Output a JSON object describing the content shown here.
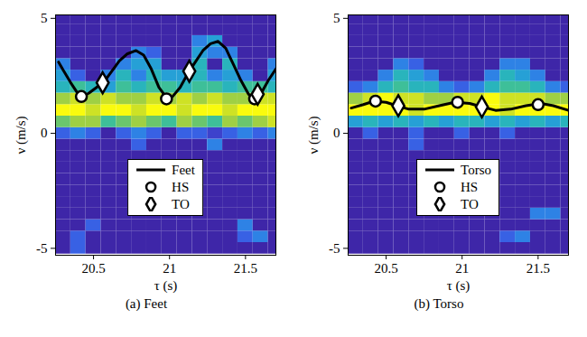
{
  "chart_data": [
    {
      "type": "line",
      "title": "(a) Feet",
      "x_label": "τ (s)",
      "y_label": "ν (m/s)",
      "xlim": [
        20.25,
        21.7
      ],
      "ylim": [
        -5.3,
        5.15
      ],
      "xticks": [
        20.5,
        21,
        21.5
      ],
      "yticks": [
        -5,
        0,
        5
      ],
      "legend": "bottom",
      "series": [
        {
          "name": "Feet",
          "type": "line",
          "color": "#000000",
          "x": [
            20.27,
            20.3,
            20.35,
            20.4,
            20.43,
            20.47,
            20.52,
            20.57,
            20.62,
            20.67,
            20.72,
            20.78,
            20.83,
            20.88,
            20.93,
            20.98,
            21.02,
            21.07,
            21.12,
            21.17,
            21.22,
            21.27,
            21.32,
            21.37,
            21.42,
            21.47,
            21.52,
            21.56,
            21.6,
            21.65,
            21.7
          ],
          "values": [
            3.1,
            2.75,
            2.2,
            1.7,
            1.6,
            1.75,
            2.0,
            2.25,
            2.7,
            3.15,
            3.45,
            3.6,
            3.4,
            2.8,
            2.0,
            1.55,
            1.6,
            2.0,
            2.6,
            3.1,
            3.6,
            3.9,
            4.0,
            3.7,
            3.0,
            2.3,
            1.7,
            1.5,
            1.7,
            2.3,
            2.8
          ]
        },
        {
          "name": "HS",
          "type": "scatter",
          "marker": "circle",
          "color": "#000000",
          "x": [
            20.42,
            20.98,
            21.56
          ],
          "values": [
            1.6,
            1.5,
            1.5
          ]
        },
        {
          "name": "TO",
          "type": "scatter",
          "marker": "diamond",
          "color": "#000000",
          "x": [
            20.56,
            21.13,
            21.58
          ],
          "values": [
            2.2,
            2.7,
            1.7
          ]
        }
      ],
      "heatmap": {
        "tau_edges": [
          20.25,
          20.35,
          20.45,
          20.55,
          20.65,
          20.75,
          20.85,
          20.95,
          21.05,
          21.15,
          21.25,
          21.35,
          21.45,
          21.55,
          21.65,
          21.75
        ],
        "nu_edges": [
          -5.25,
          -4.75,
          -4.25,
          -3.75,
          -3.25,
          -2.75,
          -2.25,
          -1.75,
          -1.25,
          -0.75,
          -0.25,
          0.25,
          0.75,
          1.25,
          1.75,
          2.25,
          2.75,
          3.25,
          3.75,
          4.25,
          4.75,
          5.25
        ],
        "clim": [
          0,
          1
        ],
        "values": [
          [
            0,
            0.2,
            0,
            0,
            0,
            0,
            0,
            0,
            0,
            0,
            0,
            0,
            0,
            0,
            0
          ],
          [
            0,
            0.2,
            0,
            0,
            0,
            0,
            0,
            0,
            0,
            0,
            0,
            0,
            0.2,
            0.3,
            0
          ],
          [
            0,
            0,
            0.2,
            0,
            0,
            0,
            0,
            0,
            0,
            0,
            0,
            0,
            0.3,
            0,
            0
          ],
          [
            0,
            0,
            0,
            0,
            0,
            0,
            0,
            0,
            0,
            0,
            0,
            0,
            0,
            0,
            0
          ],
          [
            0,
            0,
            0,
            0,
            0,
            0,
            0,
            0,
            0,
            0,
            0,
            0,
            0,
            0,
            0
          ],
          [
            0,
            0,
            0,
            0,
            0,
            0,
            0,
            0,
            0,
            0,
            0,
            0,
            0,
            0,
            0
          ],
          [
            0,
            0,
            0,
            0,
            0,
            0,
            0,
            0,
            0,
            0,
            0,
            0,
            0,
            0,
            0
          ],
          [
            0,
            0,
            0,
            0,
            0,
            0,
            0,
            0,
            0,
            0,
            0,
            0,
            0,
            0,
            0
          ],
          [
            0,
            0,
            0,
            0,
            0,
            0,
            0,
            0,
            0,
            0,
            0,
            0,
            0,
            0,
            0
          ],
          [
            0,
            0,
            0,
            0,
            0,
            0.2,
            0,
            0,
            0,
            0,
            0.3,
            0,
            0,
            0,
            0
          ],
          [
            0.2,
            0.3,
            0.2,
            0,
            0.2,
            0.3,
            0.2,
            0,
            0.2,
            0.2,
            0.1,
            0.2,
            0.3,
            0.2,
            0.3
          ],
          [
            0.7,
            0.8,
            0.8,
            0.6,
            0.7,
            0.8,
            0.7,
            0.6,
            0.8,
            0.7,
            0.6,
            0.8,
            0.7,
            0.8,
            0.9
          ],
          [
            1,
            1,
            0.9,
            1,
            1,
            0.9,
            1,
            1,
            0.9,
            1,
            1,
            0.9,
            1,
            1,
            1
          ],
          [
            0.8,
            0.9,
            0.8,
            0.9,
            0.8,
            0.8,
            0.9,
            0.8,
            0.9,
            0.8,
            0.9,
            0.8,
            0.8,
            0.9,
            0.9
          ],
          [
            0.5,
            0.6,
            0.5,
            0.4,
            0.6,
            0.5,
            0.6,
            0.6,
            0.5,
            0.6,
            0.6,
            0.5,
            0.6,
            0.6,
            0.5
          ],
          [
            0.4,
            0.2,
            0,
            0.3,
            0.5,
            0.3,
            0.5,
            0.4,
            0.4,
            0.5,
            0.3,
            0.4,
            0.3,
            0,
            0.4
          ],
          [
            0.3,
            0,
            0,
            0,
            0.3,
            0.4,
            0.4,
            0,
            0,
            0.5,
            0,
            0.5,
            0,
            0,
            0.3
          ],
          [
            0,
            0,
            0,
            0,
            0,
            0.3,
            0.2,
            0,
            0,
            0.4,
            0.3,
            0.3,
            0,
            0,
            0
          ],
          [
            0,
            0,
            0,
            0,
            0,
            0,
            0,
            0,
            0,
            0.3,
            0.4,
            0,
            0,
            0,
            0
          ],
          [
            0,
            0,
            0,
            0,
            0,
            0,
            0,
            0,
            0,
            0,
            0,
            0,
            0,
            0,
            0
          ],
          [
            0,
            0,
            0,
            0,
            0,
            0,
            0,
            0,
            0,
            0,
            0,
            0,
            0,
            0,
            0
          ]
        ]
      }
    },
    {
      "type": "line",
      "title": "(b) Torso",
      "x_label": "τ (s)",
      "y_label": "ν (m/s)",
      "xlim": [
        20.25,
        21.7
      ],
      "ylim": [
        -5.3,
        5.15
      ],
      "xticks": [
        20.5,
        21,
        21.5
      ],
      "yticks": [
        -5,
        0,
        5
      ],
      "legend": "bottom",
      "series": [
        {
          "name": "Torso",
          "type": "line",
          "color": "#000000",
          "x": [
            20.27,
            20.35,
            20.42,
            20.5,
            20.57,
            20.65,
            20.75,
            20.85,
            20.95,
            21.05,
            21.13,
            21.22,
            21.32,
            21.42,
            21.52,
            21.6,
            21.7
          ],
          "values": [
            1.1,
            1.25,
            1.4,
            1.35,
            1.2,
            1.05,
            1.05,
            1.2,
            1.35,
            1.3,
            1.15,
            1.0,
            1.05,
            1.2,
            1.3,
            1.2,
            1.0
          ]
        },
        {
          "name": "HS",
          "type": "scatter",
          "marker": "circle",
          "color": "#000000",
          "x": [
            20.43,
            20.97,
            21.5
          ],
          "values": [
            1.4,
            1.35,
            1.25
          ]
        },
        {
          "name": "TO",
          "type": "scatter",
          "marker": "diamond",
          "color": "#000000",
          "x": [
            20.58,
            21.13
          ],
          "values": [
            1.2,
            1.15
          ]
        }
      ],
      "heatmap": {
        "tau_edges": [
          20.25,
          20.35,
          20.45,
          20.55,
          20.65,
          20.75,
          20.85,
          20.95,
          21.05,
          21.15,
          21.25,
          21.35,
          21.45,
          21.55,
          21.65,
          21.75
        ],
        "nu_edges": [
          -5.25,
          -4.75,
          -4.25,
          -3.75,
          -3.25,
          -2.75,
          -2.25,
          -1.75,
          -1.25,
          -0.75,
          -0.25,
          0.25,
          0.75,
          1.25,
          1.75,
          2.25,
          2.75,
          3.25,
          3.75,
          4.25,
          4.75,
          5.25
        ],
        "clim": [
          0,
          1
        ],
        "values": [
          [
            0,
            0,
            0,
            0,
            0,
            0,
            0,
            0,
            0,
            0,
            0,
            0,
            0,
            0,
            0
          ],
          [
            0,
            0,
            0,
            0,
            0,
            0,
            0,
            0,
            0,
            0,
            0.2,
            0.3,
            0,
            0,
            0
          ],
          [
            0,
            0,
            0,
            0,
            0,
            0,
            0,
            0,
            0,
            0,
            0,
            0,
            0,
            0,
            0
          ],
          [
            0,
            0,
            0,
            0,
            0,
            0,
            0,
            0,
            0,
            0,
            0,
            0,
            0.3,
            0.3,
            0
          ],
          [
            0,
            0,
            0,
            0,
            0,
            0,
            0,
            0,
            0,
            0,
            0,
            0,
            0,
            0,
            0
          ],
          [
            0,
            0,
            0,
            0,
            0,
            0,
            0,
            0,
            0,
            0,
            0,
            0,
            0,
            0,
            0
          ],
          [
            0,
            0,
            0,
            0,
            0,
            0,
            0,
            0,
            0,
            0,
            0,
            0,
            0,
            0,
            0
          ],
          [
            0,
            0,
            0,
            0,
            0,
            0,
            0,
            0,
            0,
            0,
            0,
            0,
            0,
            0,
            0
          ],
          [
            0,
            0,
            0,
            0,
            0,
            0,
            0,
            0,
            0,
            0,
            0,
            0,
            0,
            0,
            0
          ],
          [
            0,
            0,
            0,
            0,
            0.2,
            0,
            0,
            0,
            0,
            0,
            0,
            0,
            0,
            0,
            0
          ],
          [
            0,
            0.2,
            0,
            0,
            0.2,
            0,
            0,
            0.2,
            0,
            0,
            0.2,
            0,
            0,
            0,
            0
          ],
          [
            0.4,
            0.5,
            0.4,
            0.5,
            0.4,
            0.5,
            0.4,
            0.5,
            0.5,
            0.4,
            0.5,
            0.4,
            0.5,
            0.4,
            0.5
          ],
          [
            1,
            1,
            1,
            1,
            0.9,
            1,
            1,
            1,
            1,
            1,
            0.9,
            1,
            1,
            1,
            1
          ],
          [
            0.8,
            0.9,
            1,
            0.9,
            0.9,
            0.8,
            0.8,
            0.9,
            0.9,
            1,
            0.9,
            0.9,
            0.9,
            0.8,
            0.8
          ],
          [
            0.2,
            0.3,
            0.5,
            0.6,
            0.5,
            0.5,
            0.3,
            0.2,
            0.3,
            0.5,
            0.6,
            0.6,
            0.5,
            0.3,
            0.2
          ],
          [
            0,
            0,
            0.3,
            0.5,
            0.4,
            0.3,
            0,
            0,
            0,
            0.3,
            0.5,
            0.4,
            0.3,
            0,
            0
          ],
          [
            0,
            0,
            0,
            0.3,
            0.2,
            0,
            0,
            0,
            0,
            0,
            0.3,
            0.3,
            0,
            0,
            0
          ],
          [
            0,
            0,
            0,
            0,
            0,
            0,
            0,
            0,
            0,
            0,
            0,
            0,
            0,
            0,
            0
          ],
          [
            0,
            0,
            0,
            0,
            0,
            0,
            0,
            0,
            0,
            0,
            0,
            0,
            0,
            0,
            0
          ],
          [
            0,
            0,
            0,
            0,
            0,
            0,
            0,
            0,
            0,
            0,
            0,
            0,
            0,
            0,
            0
          ],
          [
            0,
            0,
            0,
            0,
            0,
            0,
            0,
            0,
            0,
            0,
            0,
            0,
            0,
            0,
            0
          ]
        ]
      }
    }
  ]
}
